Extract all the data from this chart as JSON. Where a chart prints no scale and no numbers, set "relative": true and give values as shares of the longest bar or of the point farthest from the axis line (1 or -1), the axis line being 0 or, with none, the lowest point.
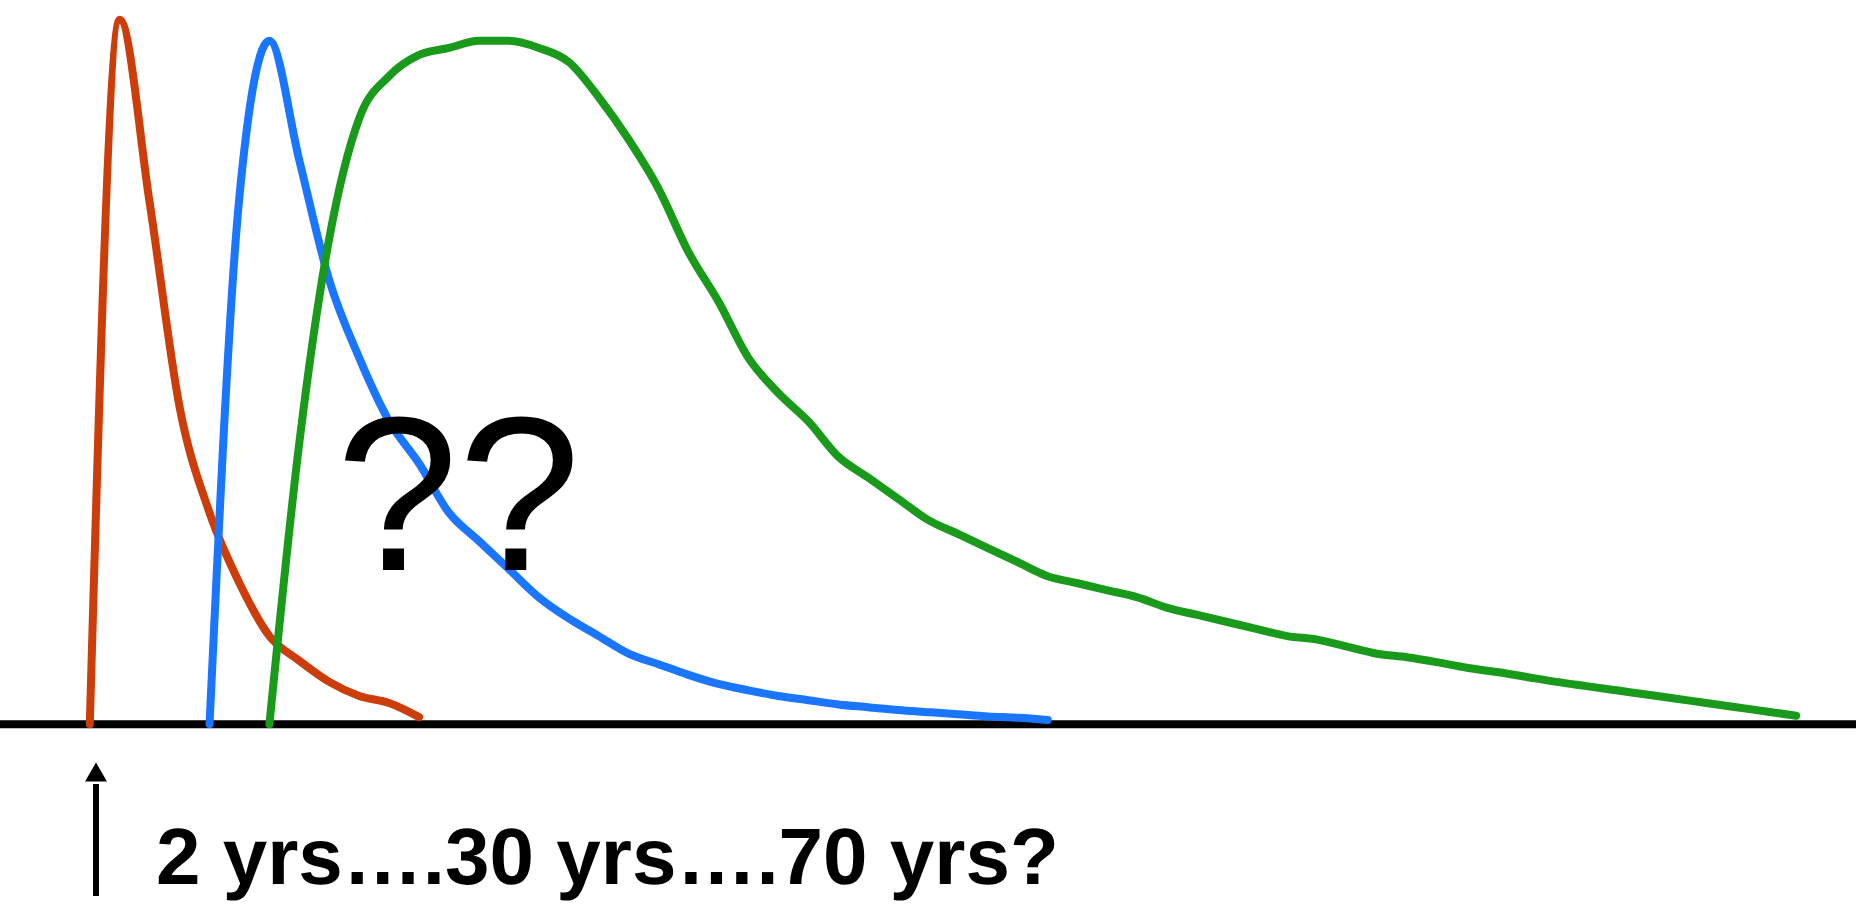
{
  "chart_data": {
    "type": "line",
    "relative": true,
    "marker": "none",
    "line_style": "solid",
    "categories": [
      null,
      null,
      null,
      null,
      null,
      null,
      null,
      null,
      null,
      null,
      null,
      null,
      null,
      null,
      null,
      null,
      null,
      null,
      null,
      null,
      null,
      null,
      null,
      null,
      null,
      null,
      null,
      null,
      null,
      null,
      null,
      null,
      null,
      null,
      null,
      null,
      null,
      null,
      null,
      null,
      null,
      null,
      null,
      null,
      null,
      null,
      null,
      null,
      null,
      null,
      null,
      null,
      null,
      null,
      null,
      null,
      null,
      null,
      null,
      null,
      null
    ],
    "series": [
      {
        "color": "#cc3d0a",
        "values": [
          null,
          null,
          0,
          1.0,
          0.74,
          0.45,
          0.3,
          0.2,
          0.125,
          0.09,
          0.06,
          0.04,
          0.03,
          0.01,
          null,
          null,
          null,
          null,
          null,
          null,
          null,
          null,
          null,
          null,
          null,
          null,
          null,
          null,
          null,
          null,
          null,
          null,
          null,
          null,
          null,
          null,
          null,
          null,
          null,
          null,
          null,
          null,
          null,
          null,
          null,
          null,
          null,
          null,
          null,
          null,
          null,
          null,
          null,
          null,
          null,
          null,
          null,
          null,
          null,
          null,
          null
        ]
      },
      {
        "color": "#1a75ff",
        "values": [
          null,
          null,
          null,
          null,
          null,
          null,
          0,
          0.75,
          0.97,
          0.8,
          0.63,
          0.52,
          0.43,
          0.37,
          0.3,
          0.26,
          0.22,
          0.18,
          0.15,
          0.125,
          0.1,
          0.085,
          0.07,
          0.057,
          0.048,
          0.04,
          0.034,
          0.028,
          0.024,
          0.02,
          0.017,
          0.014,
          0.011,
          0.009,
          0.006,
          null,
          null,
          null,
          null,
          null,
          null,
          null,
          null,
          null,
          null,
          null,
          null,
          null,
          null,
          null,
          null,
          null,
          null,
          null,
          null,
          null,
          null,
          null,
          null,
          null,
          null
        ]
      },
      {
        "color": "#1a9a1a",
        "values": [
          null,
          null,
          null,
          null,
          null,
          null,
          null,
          null,
          0,
          0.4,
          0.69,
          0.86,
          0.92,
          0.95,
          0.96,
          0.97,
          0.97,
          0.96,
          0.94,
          0.89,
          0.83,
          0.76,
          0.67,
          0.6,
          0.52,
          0.47,
          0.43,
          0.38,
          0.35,
          0.32,
          0.29,
          0.27,
          0.25,
          0.23,
          0.21,
          0.2,
          0.19,
          0.18,
          0.165,
          0.155,
          0.145,
          0.135,
          0.125,
          0.12,
          0.11,
          0.1,
          0.095,
          0.088,
          0.08,
          0.074,
          0.067,
          0.06,
          0.054,
          0.048,
          0.042,
          0.036,
          0.03,
          0.024,
          0.018,
          0.012,
          null
        ]
      }
    ],
    "annotations": [
      "??",
      "2 yrs….30 yrs….70 yrs?"
    ]
  }
}
